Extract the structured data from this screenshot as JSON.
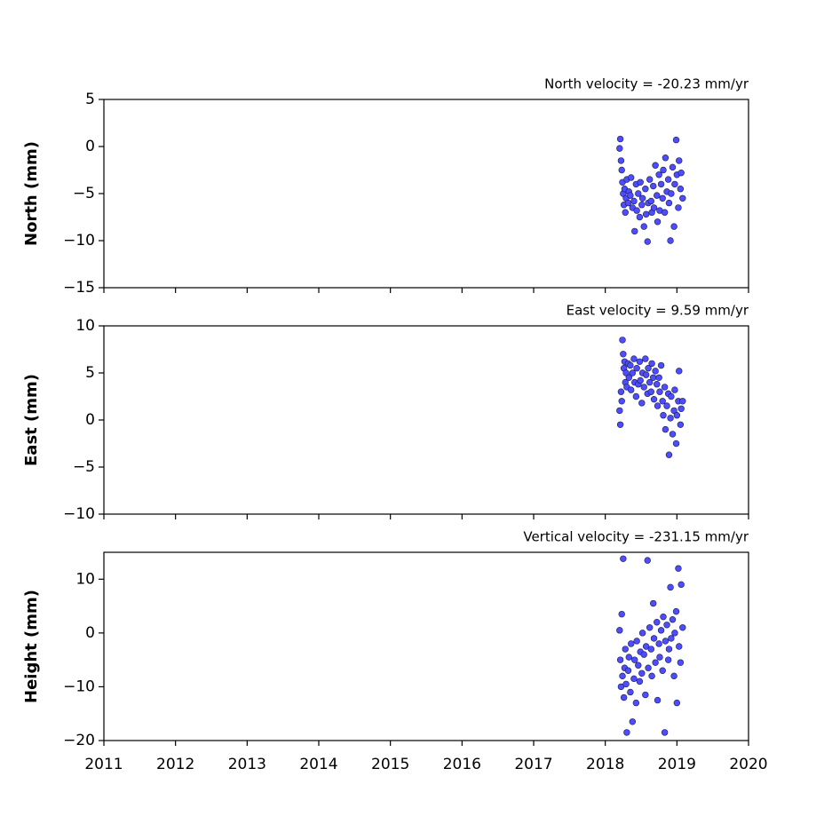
{
  "chart_data": [
    {
      "type": "scatter",
      "annotation": "North velocity = -20.23 mm/yr",
      "ylabel": "North (mm)",
      "color": "#4d4dff",
      "edgecolor": "#1a1a50",
      "xlim": [
        2011,
        2020
      ],
      "xticks": [
        2011,
        2012,
        2013,
        2014,
        2015,
        2016,
        2017,
        2018,
        2019,
        2020
      ],
      "ylim": [
        -15,
        5
      ],
      "yticks": [
        {
          "value": -15,
          "label": "−15"
        },
        {
          "value": -10,
          "label": "−10"
        },
        {
          "value": -5,
          "label": "−5"
        },
        0,
        5
      ],
      "x": [
        2018.2,
        2018.21,
        2018.22,
        2018.23,
        2018.24,
        2018.25,
        2018.26,
        2018.27,
        2018.28,
        2018.29,
        2018.3,
        2018.32,
        2018.33,
        2018.35,
        2018.36,
        2018.38,
        2018.4,
        2018.41,
        2018.43,
        2018.44,
        2018.46,
        2018.48,
        2018.49,
        2018.51,
        2018.52,
        2018.54,
        2018.56,
        2018.57,
        2018.59,
        2018.6,
        2018.62,
        2018.64,
        2018.65,
        2018.67,
        2018.68,
        2018.7,
        2018.72,
        2018.73,
        2018.75,
        2018.76,
        2018.78,
        2018.8,
        2018.81,
        2018.83,
        2018.84,
        2018.86,
        2018.88,
        2018.89,
        2018.91,
        2018.92,
        2018.94,
        2018.96,
        2018.97,
        2018.99,
        2019.0,
        2019.02,
        2019.03,
        2019.05,
        2019.06,
        2019.08
      ],
      "values": [
        -0.2,
        0.8,
        -1.5,
        -2.5,
        -3.8,
        -5.0,
        -6.2,
        -4.5,
        -7.0,
        -5.5,
        -3.5,
        -6.0,
        -4.8,
        -5.2,
        -3.3,
        -6.5,
        -5.8,
        -9.0,
        -4.0,
        -6.8,
        -5.0,
        -7.5,
        -3.8,
        -6.2,
        -5.5,
        -8.5,
        -4.5,
        -7.2,
        -10.1,
        -6.0,
        -3.5,
        -5.8,
        -7.0,
        -4.2,
        -6.5,
        -2.0,
        -5.2,
        -8.0,
        -3.0,
        -6.8,
        -4.0,
        -5.5,
        -2.5,
        -7.0,
        -1.2,
        -4.8,
        -3.5,
        -6.0,
        -10.0,
        -5.0,
        -2.2,
        -8.5,
        -4.0,
        0.7,
        -3.0,
        -6.5,
        -1.5,
        -4.5,
        -2.8,
        -5.5
      ]
    },
    {
      "type": "scatter",
      "annotation": "East velocity = 9.59 mm/yr",
      "ylabel": "East (mm)",
      "color": "#4d4dff",
      "edgecolor": "#1a1a50",
      "xlim": [
        2011,
        2020
      ],
      "xticks": [
        2011,
        2012,
        2013,
        2014,
        2015,
        2016,
        2017,
        2018,
        2019,
        2020
      ],
      "ylim": [
        -10,
        10
      ],
      "yticks": [
        {
          "value": -10,
          "label": "−10"
        },
        {
          "value": -5,
          "label": "−5"
        },
        0,
        5,
        10
      ],
      "x": [
        2018.2,
        2018.21,
        2018.22,
        2018.23,
        2018.24,
        2018.25,
        2018.26,
        2018.27,
        2018.28,
        2018.29,
        2018.3,
        2018.32,
        2018.33,
        2018.35,
        2018.36,
        2018.38,
        2018.4,
        2018.41,
        2018.43,
        2018.44,
        2018.46,
        2018.48,
        2018.49,
        2018.51,
        2018.52,
        2018.54,
        2018.56,
        2018.57,
        2018.59,
        2018.6,
        2018.62,
        2018.64,
        2018.65,
        2018.67,
        2018.68,
        2018.7,
        2018.72,
        2018.73,
        2018.75,
        2018.76,
        2018.78,
        2018.8,
        2018.81,
        2018.83,
        2018.84,
        2018.86,
        2018.88,
        2018.89,
        2018.91,
        2018.92,
        2018.94,
        2018.96,
        2018.97,
        2018.99,
        2019.0,
        2019.02,
        2019.03,
        2019.05,
        2019.06,
        2019.08
      ],
      "values": [
        1.0,
        -0.5,
        3.0,
        2.0,
        8.5,
        7.0,
        5.5,
        6.2,
        4.0,
        5.0,
        3.5,
        6.0,
        4.5,
        5.8,
        3.2,
        5.0,
        6.5,
        4.0,
        2.5,
        5.5,
        3.8,
        6.2,
        4.2,
        1.8,
        5.0,
        3.5,
        6.5,
        4.8,
        2.8,
        5.5,
        4.0,
        3.0,
        6.0,
        4.5,
        2.2,
        5.2,
        3.8,
        1.5,
        4.5,
        3.0,
        5.8,
        2.0,
        0.5,
        3.5,
        -1.0,
        1.5,
        2.8,
        -3.7,
        0.2,
        2.5,
        -1.5,
        1.0,
        3.2,
        -2.5,
        0.5,
        2.0,
        5.2,
        -0.5,
        1.2,
        2.0
      ]
    },
    {
      "type": "scatter",
      "annotation": "Vertical velocity = -231.15 mm/yr",
      "ylabel": "Height (mm)",
      "color": "#4d4dff",
      "edgecolor": "#1a1a50",
      "xlim": [
        2011,
        2020
      ],
      "xticks": [
        2011,
        2012,
        2013,
        2014,
        2015,
        2016,
        2017,
        2018,
        2019,
        2020
      ],
      "ylim": [
        -20,
        15
      ],
      "yticks": [
        {
          "value": -20,
          "label": "−20"
        },
        {
          "value": -10,
          "label": "−10"
        },
        0,
        10
      ],
      "x": [
        2018.2,
        2018.21,
        2018.22,
        2018.23,
        2018.24,
        2018.25,
        2018.26,
        2018.27,
        2018.28,
        2018.29,
        2018.3,
        2018.32,
        2018.33,
        2018.35,
        2018.36,
        2018.38,
        2018.4,
        2018.41,
        2018.43,
        2018.44,
        2018.46,
        2018.48,
        2018.49,
        2018.51,
        2018.52,
        2018.54,
        2018.56,
        2018.57,
        2018.59,
        2018.6,
        2018.62,
        2018.64,
        2018.65,
        2018.67,
        2018.68,
        2018.7,
        2018.72,
        2018.73,
        2018.75,
        2018.76,
        2018.78,
        2018.8,
        2018.81,
        2018.83,
        2018.84,
        2018.86,
        2018.88,
        2018.89,
        2018.91,
        2018.92,
        2018.94,
        2018.96,
        2018.97,
        2018.99,
        2019.0,
        2019.02,
        2019.03,
        2019.05,
        2019.06,
        2019.08
      ],
      "values": [
        0.5,
        -5.0,
        -10.0,
        3.5,
        -8.0,
        13.8,
        -12.0,
        -6.5,
        -3.0,
        -9.5,
        -18.5,
        -7.0,
        -4.5,
        -11.0,
        -2.0,
        -16.5,
        -8.5,
        -5.0,
        -13.0,
        -1.5,
        -6.0,
        -9.0,
        -3.5,
        -7.5,
        0.0,
        -4.0,
        -11.5,
        -2.5,
        13.5,
        -6.5,
        1.0,
        -3.0,
        -8.0,
        5.5,
        -1.0,
        -5.5,
        2.0,
        -12.5,
        -2.0,
        -4.5,
        0.5,
        -7.0,
        3.0,
        -18.5,
        -1.5,
        1.5,
        -5.0,
        -3.0,
        8.5,
        -1.0,
        2.5,
        -8.0,
        0.0,
        4.0,
        -13.0,
        12.0,
        -2.5,
        -5.5,
        9.0,
        1.0
      ]
    }
  ]
}
